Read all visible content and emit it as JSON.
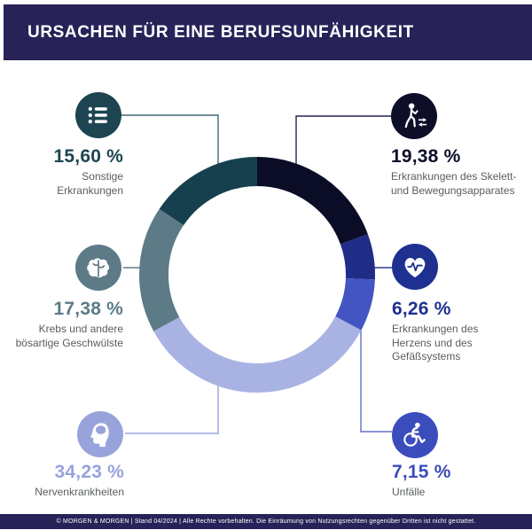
{
  "header": {
    "title": "URSACHEN FÜR EINE BERUFSUNFÄHIGKEIT",
    "bg_color": "#272258"
  },
  "footer": {
    "text": "© MORGEN & MORGEN | Stand 04/2024 | Alle Rechte vorbehalten. Die Einräumung von Nutzungsrechten gegenüber Dritten ist nicht gestattet.",
    "bg_color": "#272258"
  },
  "chart_data": {
    "type": "pie",
    "subtype": "donut",
    "title": "Ursachen für eine Berufsunfähigkeit",
    "unit": "%",
    "start_angle_deg": 0,
    "direction": "clockwise",
    "total": 100,
    "segments": [
      {
        "id": "skelett",
        "label": "Erkrankungen des Skelett- und Bewegungsapparates",
        "label_lines": [
          "Erkrankungen des Skelett-",
          "und Bewegungsapparates"
        ],
        "value": 19.38,
        "value_label": "19,38 %",
        "color": "#0b0c26",
        "icon_color": "#0d0e28",
        "line_color": "#23254c",
        "icon": "walking-person-icon"
      },
      {
        "id": "herz",
        "label": "Erkrankungen des Herzens und des Gefäßsystems",
        "label_lines": [
          "Erkrankungen des",
          "Herzens und des",
          "Gefäßsystems"
        ],
        "value": 6.26,
        "value_label": "6,26 %",
        "color": "#202c86",
        "icon_color": "#1e3190",
        "line_color": "#2e3c99",
        "icon": "heart-pulse-icon"
      },
      {
        "id": "unfaelle",
        "label": "Unfälle",
        "label_lines": [
          "Unfälle"
        ],
        "value": 7.15,
        "value_label": "7,15 %",
        "color": "#4355c3",
        "icon_color": "#3b4cbc",
        "line_color": "#6470cd",
        "icon": "wheelchair-icon"
      },
      {
        "id": "nerven",
        "label": "Nervenkrankheiten",
        "label_lines": [
          "Nervenkrankheiten"
        ],
        "value": 34.23,
        "value_label": "34,23 %",
        "color": "#a9b3e3",
        "icon_color": "#98a3dc",
        "line_color": "#9aa4dc",
        "icon": "head-profile-icon"
      },
      {
        "id": "krebs",
        "label": "Krebs und andere bösartige Geschwülste",
        "label_lines": [
          "Krebs und andere",
          "bösartige Geschwülste"
        ],
        "value": 17.38,
        "value_label": "17,38 %",
        "color": "#5c7b87",
        "icon_color": "#5c7b87",
        "line_color": "#5c7b87",
        "icon": "brain-icon"
      },
      {
        "id": "sonstige",
        "label": "Sonstige Erkrankungen",
        "label_lines": [
          "Sonstige",
          "Erkrankungen"
        ],
        "value": 15.6,
        "value_label": "15,60 %",
        "color": "#16404d",
        "icon_color": "#1c4551",
        "line_color": "#42667a",
        "icon": "list-icon"
      }
    ]
  }
}
